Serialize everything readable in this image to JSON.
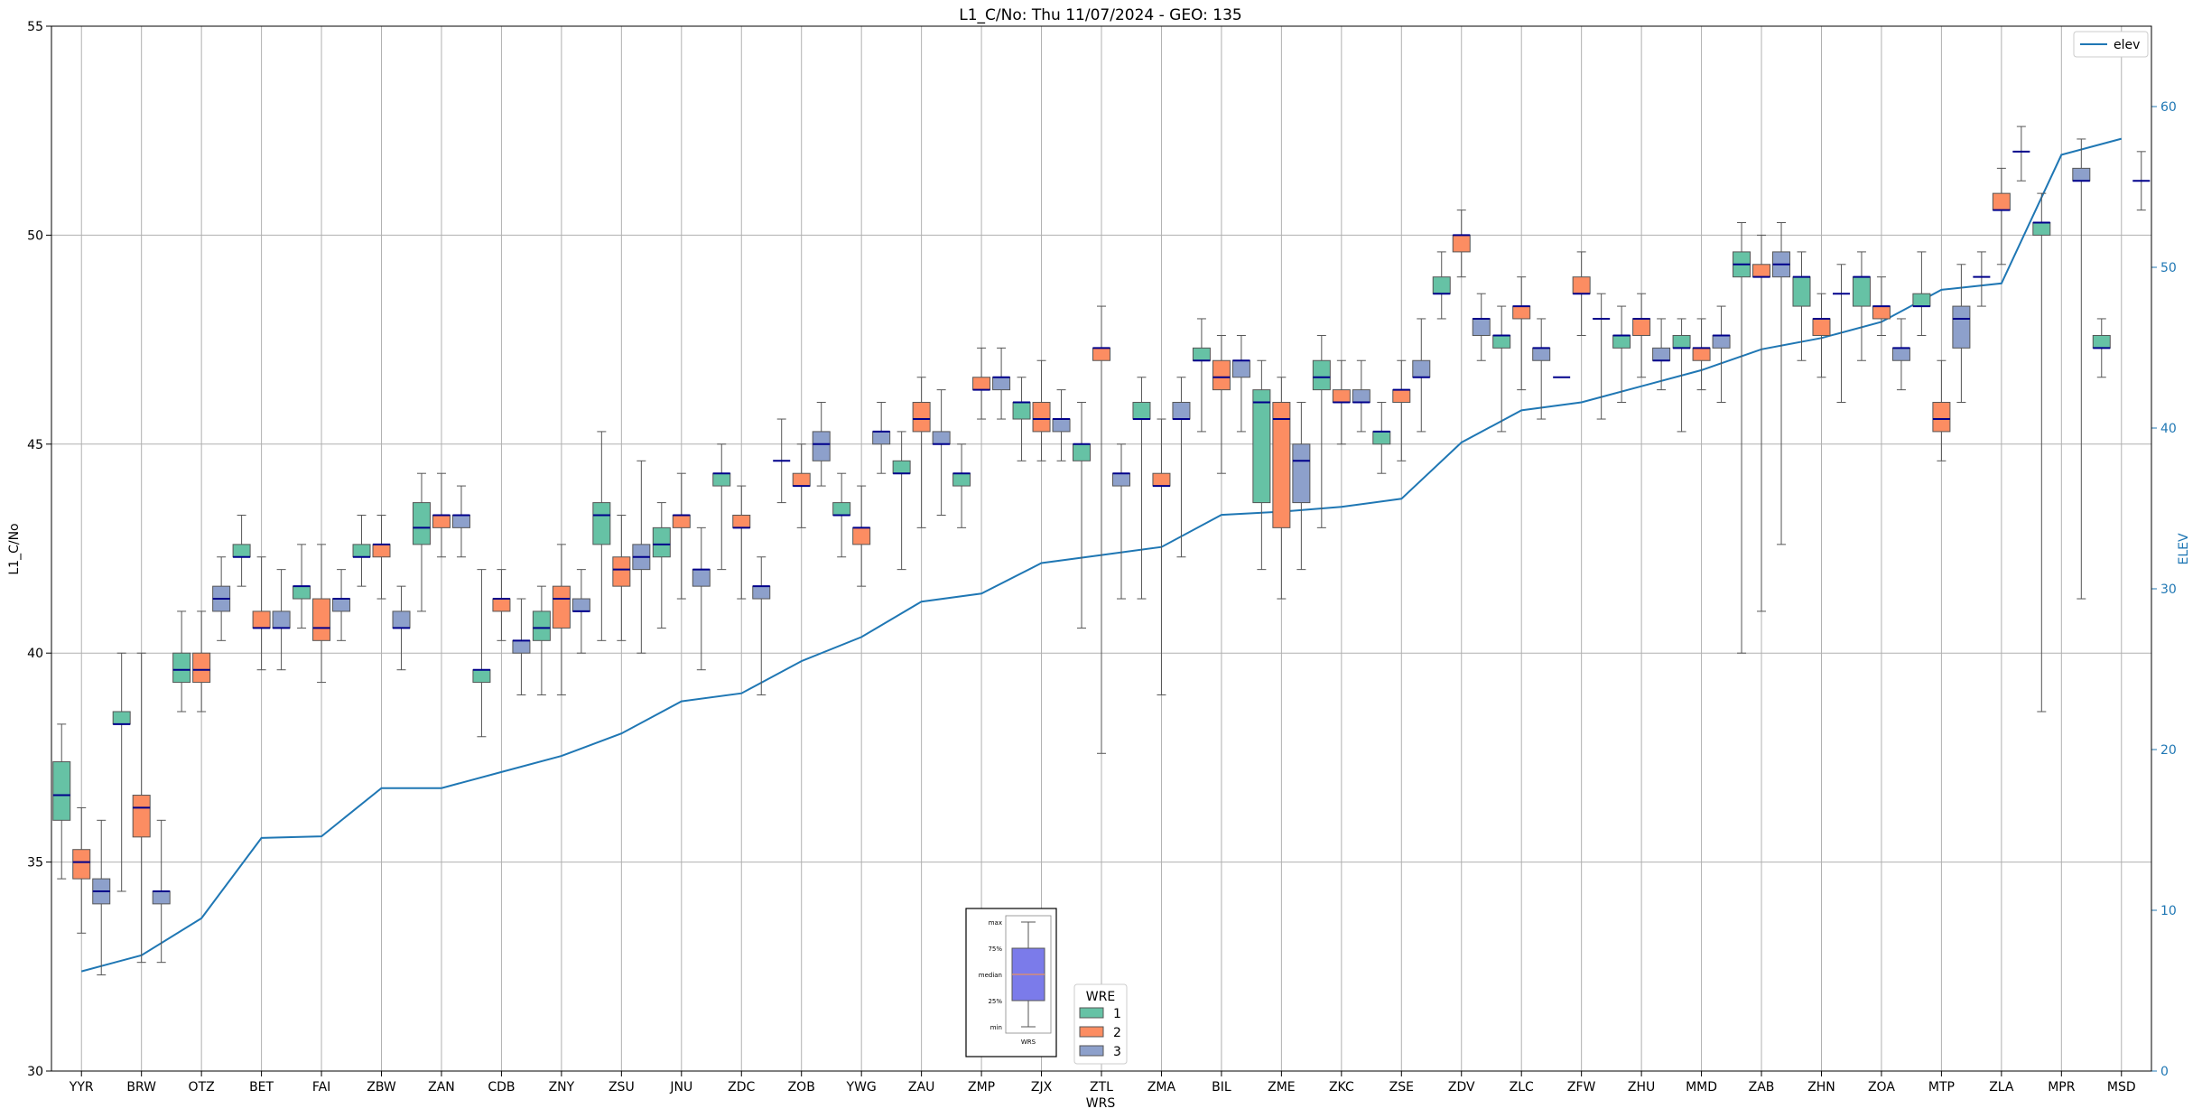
{
  "chart_data": {
    "type": "box",
    "title": "L1_C/No: Thu 11/07/2024 - GEO: 135",
    "xlabel": "WRS",
    "ylabel": "L1_C/No",
    "y2label": "ELEV",
    "ylim": [
      30,
      55
    ],
    "y2lim": [
      0,
      65
    ],
    "yticks": [
      30,
      35,
      40,
      45,
      50,
      55
    ],
    "y2ticks": [
      0,
      10,
      20,
      30,
      40,
      50,
      60
    ],
    "grid": true,
    "categories": [
      "YYR",
      "BRW",
      "OTZ",
      "BET",
      "FAI",
      "ZBW",
      "ZAN",
      "CDB",
      "ZNY",
      "ZSU",
      "JNU",
      "ZDC",
      "ZOB",
      "YWG",
      "ZAU",
      "ZMP",
      "ZJX",
      "ZTL",
      "ZMA",
      "BIL",
      "ZME",
      "ZKC",
      "ZSE",
      "ZDV",
      "ZLC",
      "ZFW",
      "ZHU",
      "MMD",
      "ZAB",
      "ZHN",
      "ZOA",
      "MTP",
      "ZLA",
      "MPR",
      "MSD"
    ],
    "colors": {
      "1": "#66c2a5",
      "2": "#fc8d62",
      "3": "#8da0cb",
      "median": "#00008b",
      "elev": "#1f77b4",
      "whisker": "#555555",
      "grid": "#b0b0b0"
    },
    "legend_wre": {
      "title": "WRE",
      "placement": "bottom-center",
      "entries": [
        "1",
        "2",
        "3"
      ]
    },
    "legend_elev": {
      "placement": "top-right",
      "entries": [
        "elev"
      ]
    },
    "key_labels": [
      "max",
      "75%",
      "median",
      "25%",
      "min",
      "WRS"
    ],
    "elev": [
      6.2,
      7.2,
      9.5,
      14.5,
      14.6,
      17.6,
      17.6,
      18.6,
      19.6,
      21.0,
      23.0,
      23.5,
      25.5,
      27.0,
      29.2,
      29.7,
      31.6,
      32.1,
      32.6,
      34.6,
      34.8,
      35.1,
      35.6,
      39.1,
      41.1,
      41.6,
      42.6,
      43.6,
      44.9,
      45.6,
      46.6,
      48.6,
      49.0,
      57.0,
      58.0
    ],
    "series": [
      {
        "name": "1",
        "boxes": [
          [
            34.6,
            36.0,
            36.6,
            37.4,
            38.3
          ],
          [
            34.3,
            38.3,
            38.3,
            38.6,
            40.0
          ],
          [
            38.6,
            39.3,
            39.6,
            40.0,
            41.0
          ],
          [
            41.6,
            42.3,
            42.3,
            42.6,
            43.3
          ],
          [
            40.6,
            41.3,
            41.6,
            41.6,
            42.6
          ],
          [
            41.6,
            42.3,
            42.3,
            42.6,
            43.3
          ],
          [
            41.0,
            42.6,
            43.0,
            43.6,
            44.3
          ],
          [
            38.0,
            39.3,
            39.6,
            39.6,
            42.0
          ],
          [
            39.0,
            40.3,
            40.6,
            41.0,
            41.6
          ],
          [
            40.3,
            42.6,
            43.3,
            43.6,
            45.3
          ],
          [
            40.6,
            42.3,
            42.6,
            43.0,
            43.6
          ],
          [
            42.0,
            44.0,
            44.3,
            44.3,
            45.0
          ],
          [
            43.6,
            44.6,
            44.6,
            44.6,
            45.6
          ],
          [
            42.3,
            43.3,
            43.3,
            43.6,
            44.3
          ],
          [
            42.0,
            44.3,
            44.3,
            44.6,
            45.3
          ],
          [
            43.0,
            44.0,
            44.3,
            44.3,
            45.0
          ],
          [
            44.6,
            45.6,
            46.0,
            46.0,
            46.6
          ],
          [
            40.6,
            44.6,
            45.0,
            45.0,
            46.0
          ],
          [
            41.3,
            45.6,
            45.6,
            46.0,
            46.6
          ],
          [
            45.3,
            47.0,
            47.0,
            47.3,
            48.0
          ],
          [
            42.0,
            43.6,
            46.0,
            46.3,
            47.0
          ],
          [
            43.0,
            46.3,
            46.6,
            47.0,
            47.6
          ],
          [
            44.3,
            45.0,
            45.3,
            45.3,
            46.0
          ],
          [
            48.0,
            48.6,
            48.6,
            49.0,
            49.6
          ],
          [
            45.3,
            47.3,
            47.6,
            47.6,
            48.3
          ],
          [
            46.6,
            46.6,
            46.6,
            46.6,
            46.6
          ],
          [
            46.0,
            47.3,
            47.6,
            47.6,
            48.3
          ],
          [
            45.3,
            47.3,
            47.3,
            47.6,
            48.0
          ],
          [
            40.0,
            49.0,
            49.3,
            49.6,
            50.3
          ],
          [
            47.0,
            48.3,
            49.0,
            49.0,
            49.6
          ],
          [
            47.0,
            48.3,
            49.0,
            49.0,
            49.6
          ],
          [
            47.6,
            48.3,
            48.3,
            48.6,
            49.6
          ],
          [
            48.3,
            49.0,
            49.0,
            49.0,
            49.6
          ],
          [
            38.6,
            50.0,
            50.3,
            50.3,
            51.0
          ],
          [
            46.6,
            47.3,
            47.3,
            47.6,
            48.0
          ]
        ]
      },
      {
        "name": "2",
        "boxes": [
          [
            33.3,
            34.6,
            35.0,
            35.3,
            36.3
          ],
          [
            32.6,
            35.6,
            36.3,
            36.6,
            40.0
          ],
          [
            38.6,
            39.3,
            39.6,
            40.0,
            41.0
          ],
          [
            39.6,
            40.6,
            40.6,
            41.0,
            42.3
          ],
          [
            39.3,
            40.3,
            40.6,
            41.3,
            42.6
          ],
          [
            41.3,
            42.3,
            42.6,
            42.6,
            43.3
          ],
          [
            42.3,
            43.0,
            43.3,
            43.3,
            44.3
          ],
          [
            40.3,
            41.0,
            41.3,
            41.3,
            42.0
          ],
          [
            39.0,
            40.6,
            41.3,
            41.6,
            42.6
          ],
          [
            40.3,
            41.6,
            42.0,
            42.3,
            43.3
          ],
          [
            41.3,
            43.0,
            43.3,
            43.3,
            44.3
          ],
          [
            41.3,
            43.0,
            43.0,
            43.3,
            44.0
          ],
          [
            43.0,
            44.0,
            44.0,
            44.3,
            45.0
          ],
          [
            41.6,
            42.6,
            43.0,
            43.0,
            44.0
          ],
          [
            43.0,
            45.3,
            45.6,
            46.0,
            46.6
          ],
          [
            45.6,
            46.3,
            46.3,
            46.6,
            47.3
          ],
          [
            44.6,
            45.3,
            45.6,
            46.0,
            47.0
          ],
          [
            37.6,
            47.0,
            47.3,
            47.3,
            48.3
          ],
          [
            39.0,
            44.0,
            44.0,
            44.3,
            45.6
          ],
          [
            44.3,
            46.3,
            46.6,
            47.0,
            47.6
          ],
          [
            41.3,
            43.0,
            45.6,
            46.0,
            46.6
          ],
          [
            45.0,
            46.0,
            46.0,
            46.3,
            47.0
          ],
          [
            44.6,
            46.0,
            46.3,
            46.3,
            47.0
          ],
          [
            49.0,
            49.6,
            50.0,
            50.0,
            50.6
          ],
          [
            46.3,
            48.0,
            48.3,
            48.3,
            49.0
          ],
          [
            47.6,
            48.6,
            48.6,
            49.0,
            49.6
          ],
          [
            46.6,
            47.6,
            48.0,
            48.0,
            48.6
          ],
          [
            46.3,
            47.0,
            47.3,
            47.3,
            48.0
          ],
          [
            41.0,
            49.0,
            49.0,
            49.3,
            50.0
          ],
          [
            46.6,
            47.6,
            48.0,
            48.0,
            48.6
          ],
          [
            47.6,
            48.0,
            48.3,
            48.3,
            49.0
          ],
          [
            44.6,
            45.3,
            45.6,
            46.0,
            47.0
          ],
          [
            49.3,
            50.6,
            50.6,
            51.0,
            51.6
          ],
          [
            null,
            null,
            null,
            null,
            null
          ],
          [
            null,
            null,
            null,
            null,
            null
          ]
        ]
      },
      {
        "name": "3",
        "boxes": [
          [
            32.3,
            34.0,
            34.3,
            34.6,
            36.0
          ],
          [
            32.6,
            34.0,
            34.3,
            34.3,
            36.0
          ],
          [
            40.3,
            41.0,
            41.3,
            41.6,
            42.3
          ],
          [
            39.6,
            40.6,
            40.6,
            41.0,
            42.0
          ],
          [
            40.3,
            41.0,
            41.3,
            41.3,
            42.0
          ],
          [
            39.6,
            40.6,
            40.6,
            41.0,
            41.6
          ],
          [
            42.3,
            43.0,
            43.3,
            43.3,
            44.0
          ],
          [
            39.0,
            40.0,
            40.3,
            40.3,
            41.3
          ],
          [
            40.0,
            41.0,
            41.0,
            41.3,
            42.0
          ],
          [
            40.0,
            42.0,
            42.3,
            42.6,
            44.6
          ],
          [
            39.6,
            41.6,
            42.0,
            42.0,
            43.0
          ],
          [
            39.0,
            41.3,
            41.6,
            41.6,
            42.3
          ],
          [
            44.0,
            44.6,
            45.0,
            45.3,
            46.0
          ],
          [
            44.3,
            45.0,
            45.3,
            45.3,
            46.0
          ],
          [
            43.3,
            45.0,
            45.0,
            45.3,
            46.3
          ],
          [
            45.6,
            46.3,
            46.6,
            46.6,
            47.3
          ],
          [
            44.6,
            45.3,
            45.6,
            45.6,
            46.3
          ],
          [
            41.3,
            44.0,
            44.3,
            44.3,
            45.0
          ],
          [
            42.3,
            45.6,
            45.6,
            46.0,
            46.6
          ],
          [
            45.3,
            46.6,
            47.0,
            47.0,
            47.6
          ],
          [
            42.0,
            43.6,
            44.6,
            45.0,
            46.0
          ],
          [
            45.3,
            46.0,
            46.0,
            46.3,
            47.0
          ],
          [
            45.3,
            46.6,
            46.6,
            47.0,
            48.0
          ],
          [
            47.0,
            47.6,
            48.0,
            48.0,
            48.6
          ],
          [
            45.6,
            47.0,
            47.3,
            47.3,
            48.0
          ],
          [
            45.6,
            48.0,
            48.0,
            48.0,
            48.6
          ],
          [
            46.3,
            47.0,
            47.0,
            47.3,
            48.0
          ],
          [
            46.0,
            47.3,
            47.6,
            47.6,
            48.3
          ],
          [
            42.6,
            49.0,
            49.3,
            49.6,
            50.3
          ],
          [
            46.0,
            48.6,
            48.6,
            48.6,
            49.3
          ],
          [
            46.3,
            47.0,
            47.3,
            47.3,
            48.0
          ],
          [
            46.0,
            47.3,
            48.0,
            48.3,
            49.3
          ],
          [
            51.3,
            52.0,
            52.0,
            52.0,
            52.6
          ],
          [
            41.3,
            51.3,
            51.3,
            51.6,
            52.3
          ],
          [
            50.6,
            51.3,
            51.3,
            51.3,
            52.0
          ]
        ]
      }
    ]
  }
}
